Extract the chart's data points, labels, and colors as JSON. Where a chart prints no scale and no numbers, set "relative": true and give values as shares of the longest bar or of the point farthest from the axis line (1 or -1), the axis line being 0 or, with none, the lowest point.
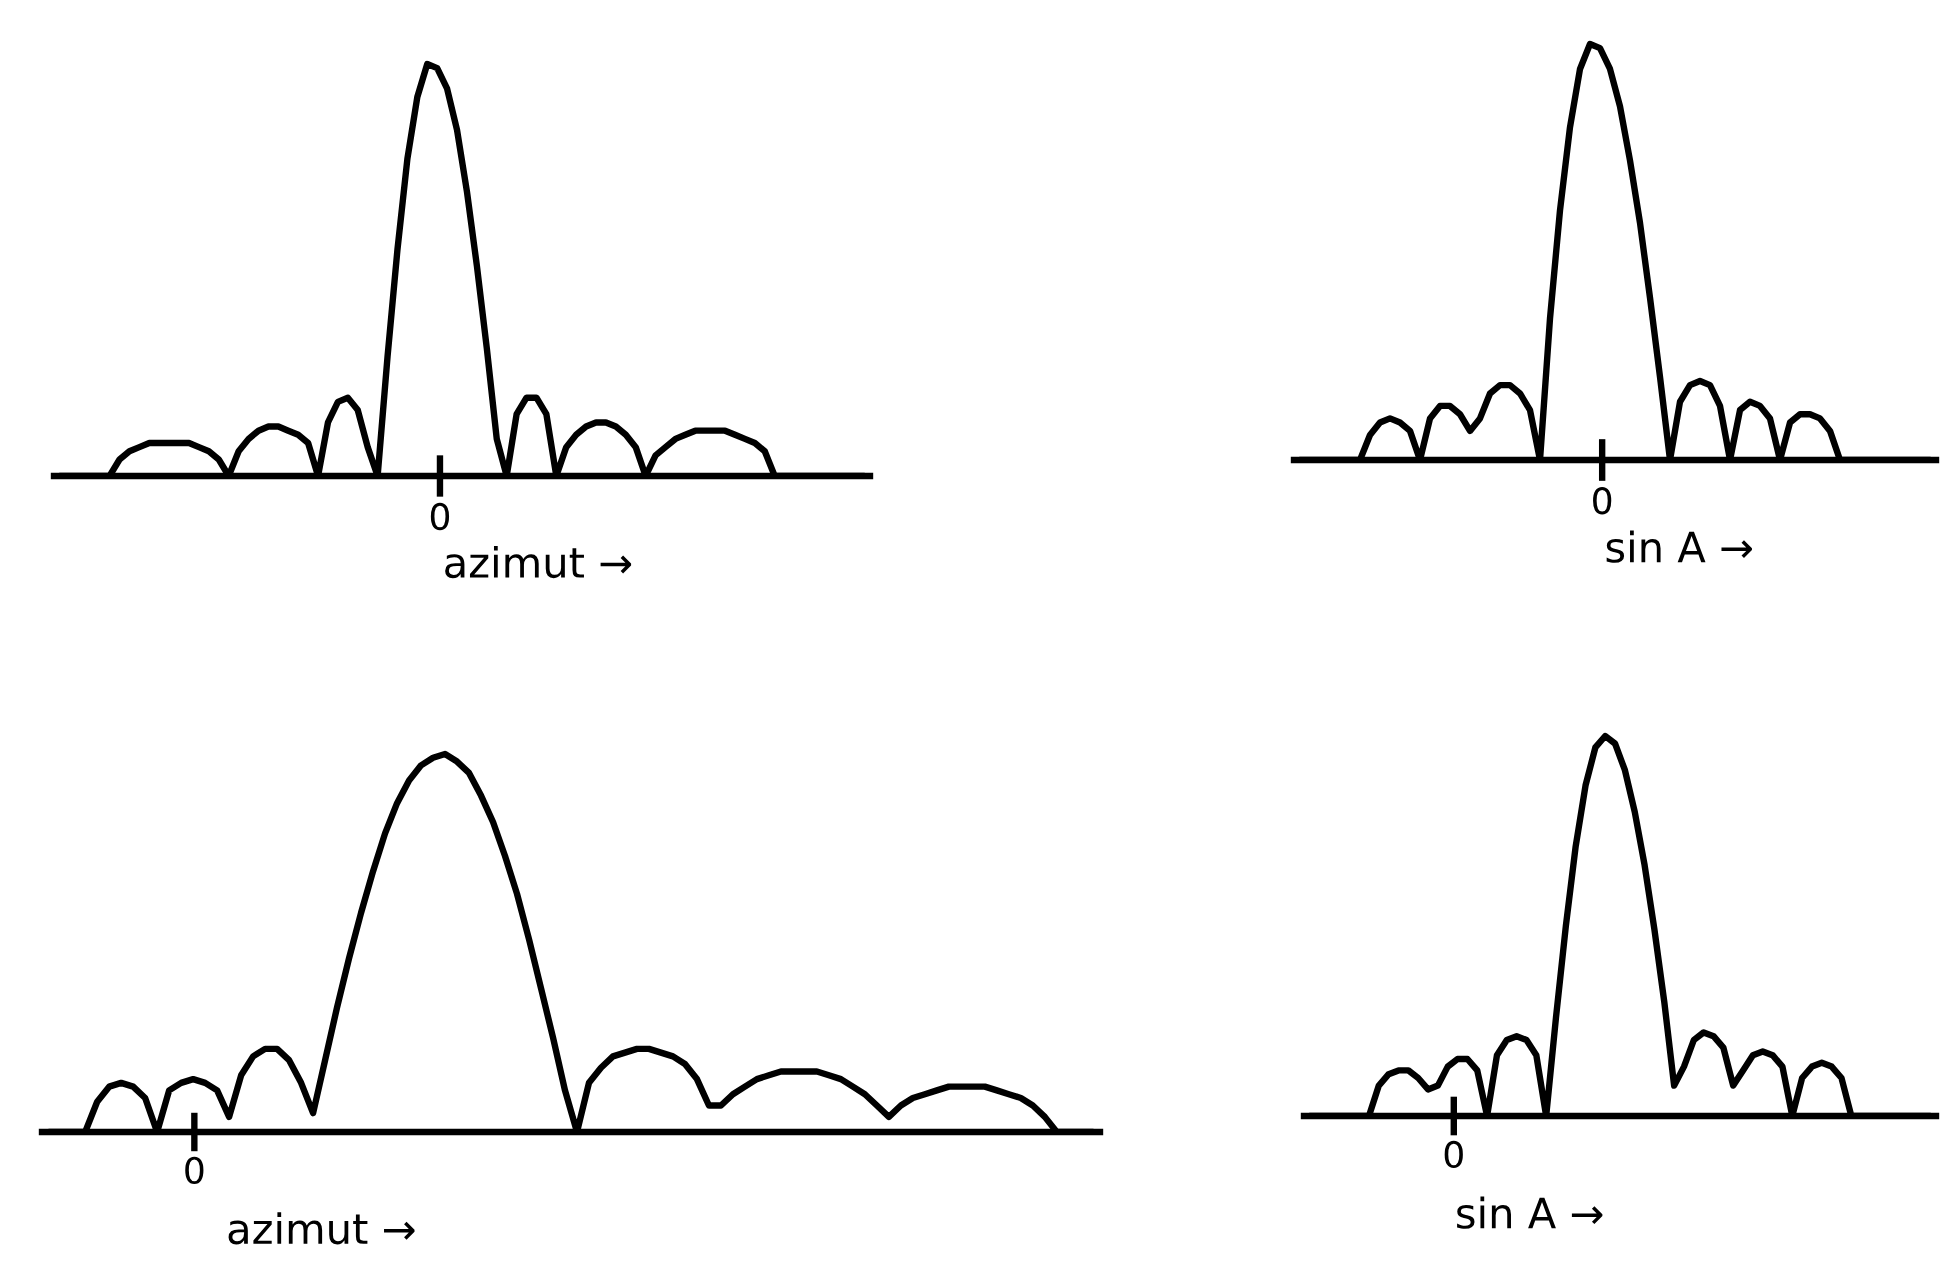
{
  "chart_data": [
    {
      "type": "line",
      "relative": true,
      "xlabel": "azimut →",
      "annotations": [
        "0"
      ],
      "categories": [
        null,
        null,
        null,
        null,
        null,
        null,
        null,
        null,
        null,
        null,
        null,
        null,
        null,
        null,
        null,
        null,
        null,
        null,
        null,
        null,
        null,
        null,
        null,
        null,
        null,
        null,
        null,
        null,
        null,
        null,
        null,
        null,
        null,
        null,
        null,
        null,
        null,
        null,
        null,
        null,
        null,
        null,
        null,
        null,
        null,
        null,
        null,
        null,
        null,
        null,
        null,
        null,
        null,
        null,
        null,
        null,
        null,
        null,
        null,
        null,
        null,
        null,
        null,
        null,
        null,
        null,
        null,
        null,
        null,
        null,
        null,
        null,
        null,
        null,
        null,
        null,
        null,
        null,
        null,
        null,
        null,
        null
      ],
      "series": [
        {
          "color": "#000000",
          "values": [
            0,
            0,
            0,
            0,
            0,
            0,
            0.04,
            0.06,
            0.07,
            0.08,
            0.08,
            0.08,
            0.08,
            0.08,
            0.07,
            0.06,
            0.04,
            0,
            0.06,
            0.09,
            0.11,
            0.12,
            0.12,
            0.11,
            0.1,
            0.08,
            0,
            0.13,
            0.18,
            0.19,
            0.16,
            0.07,
            0,
            0.29,
            0.55,
            0.77,
            0.92,
            1,
            0.99,
            0.94,
            0.84,
            0.69,
            0.51,
            0.31,
            0.09,
            0,
            0.15,
            0.19,
            0.19,
            0.15,
            0,
            0.07,
            0.1,
            0.12,
            0.13,
            0.13,
            0.12,
            0.1,
            0.07,
            0,
            0.05,
            0.07,
            0.09,
            0.1,
            0.11,
            0.11,
            0.11,
            0.11,
            0.1,
            0.09,
            0.08,
            0.06,
            0,
            0,
            0,
            0,
            0,
            0,
            0,
            0,
            0,
            0
          ]
        }
      ]
    },
    {
      "type": "line",
      "relative": true,
      "xlabel": "sin A →",
      "annotations": [
        "0"
      ],
      "categories": [
        null,
        null,
        null,
        null,
        null,
        null,
        null,
        null,
        null,
        null,
        null,
        null,
        null,
        null,
        null,
        null,
        null,
        null,
        null,
        null,
        null,
        null,
        null,
        null,
        null,
        null,
        null,
        null,
        null,
        null,
        null,
        null,
        null,
        null,
        null,
        null,
        null,
        null,
        null,
        null,
        null,
        null,
        null,
        null,
        null,
        null,
        null,
        null,
        null,
        null,
        null,
        null,
        null,
        null,
        null,
        null,
        null,
        null,
        null,
        null,
        null,
        null,
        null,
        null
      ],
      "series": [
        {
          "color": "#000000",
          "values": [
            0,
            0,
            0,
            0,
            0,
            0,
            0,
            0.06,
            0.09,
            0.1,
            0.09,
            0.07,
            0,
            0.1,
            0.13,
            0.13,
            0.11,
            0.07,
            0.1,
            0.16,
            0.18,
            0.18,
            0.16,
            0.12,
            0,
            0.34,
            0.6,
            0.8,
            0.94,
            1,
            0.99,
            0.94,
            0.85,
            0.72,
            0.57,
            0.39,
            0.2,
            0,
            0.14,
            0.18,
            0.19,
            0.18,
            0.13,
            0,
            0.12,
            0.14,
            0.13,
            0.1,
            0,
            0.09,
            0.11,
            0.11,
            0.1,
            0.07,
            0,
            0,
            0,
            0,
            0,
            0,
            0,
            0,
            0,
            0
          ]
        }
      ]
    },
    {
      "type": "line",
      "relative": true,
      "xlabel": "azimut →",
      "annotations": [
        "0"
      ],
      "categories": [
        null,
        null,
        null,
        null,
        null,
        null,
        null,
        null,
        null,
        null,
        null,
        null,
        null,
        null,
        null,
        null,
        null,
        null,
        null,
        null,
        null,
        null,
        null,
        null,
        null,
        null,
        null,
        null,
        null,
        null,
        null,
        null,
        null,
        null,
        null,
        null,
        null,
        null,
        null,
        null,
        null,
        null,
        null,
        null,
        null,
        null,
        null,
        null,
        null,
        null,
        null,
        null,
        null,
        null,
        null,
        null,
        null,
        null,
        null,
        null,
        null,
        null,
        null,
        null,
        null,
        null,
        null,
        null,
        null,
        null,
        null,
        null,
        null,
        null,
        null,
        null,
        null,
        null,
        null,
        null,
        null,
        null,
        null,
        null,
        null,
        null,
        null,
        null
      ],
      "series": [
        {
          "color": "#000000",
          "values": [
            0,
            0,
            0,
            0,
            0.08,
            0.12,
            0.13,
            0.12,
            0.09,
            0,
            0.11,
            0.13,
            0.14,
            0.13,
            0.11,
            0.04,
            0.15,
            0.2,
            0.22,
            0.22,
            0.19,
            0.13,
            0.05,
            0.19,
            0.33,
            0.46,
            0.58,
            0.69,
            0.79,
            0.87,
            0.93,
            0.97,
            0.99,
            1,
            0.98,
            0.95,
            0.89,
            0.82,
            0.73,
            0.63,
            0.51,
            0.38,
            0.25,
            0.11,
            0,
            0.13,
            0.17,
            0.2,
            0.21,
            0.22,
            0.22,
            0.21,
            0.2,
            0.18,
            0.14,
            0.07,
            0.07,
            0.1,
            0.12,
            0.14,
            0.15,
            0.16,
            0.16,
            0.16,
            0.16,
            0.15,
            0.14,
            0.12,
            0.1,
            0.07,
            0.04,
            0.07,
            0.09,
            0.1,
            0.11,
            0.12,
            0.12,
            0.12,
            0.12,
            0.11,
            0.1,
            0.09,
            0.07,
            0.04,
            0,
            0,
            0,
            0
          ]
        }
      ]
    },
    {
      "type": "line",
      "relative": true,
      "xlabel": "sin A →",
      "annotations": [
        "0"
      ],
      "categories": [
        null,
        null,
        null,
        null,
        null,
        null,
        null,
        null,
        null,
        null,
        null,
        null,
        null,
        null,
        null,
        null,
        null,
        null,
        null,
        null,
        null,
        null,
        null,
        null,
        null,
        null,
        null,
        null,
        null,
        null,
        null,
        null,
        null,
        null,
        null,
        null,
        null,
        null,
        null,
        null,
        null,
        null,
        null,
        null,
        null,
        null,
        null,
        null,
        null,
        null,
        null,
        null,
        null,
        null,
        null,
        null,
        null,
        null,
        null,
        null,
        null,
        null,
        null,
        null
      ],
      "series": [
        {
          "color": "#000000",
          "values": [
            0,
            0,
            0,
            0,
            0,
            0,
            0,
            0.08,
            0.11,
            0.12,
            0.12,
            0.1,
            0.07,
            0.08,
            0.13,
            0.15,
            0.15,
            0.12,
            0,
            0.16,
            0.2,
            0.21,
            0.2,
            0.16,
            0,
            0.26,
            0.5,
            0.71,
            0.87,
            0.97,
            1,
            0.98,
            0.91,
            0.8,
            0.66,
            0.49,
            0.3,
            0.08,
            0.13,
            0.2,
            0.22,
            0.21,
            0.18,
            0.08,
            0.12,
            0.16,
            0.17,
            0.16,
            0.13,
            0,
            0.1,
            0.13,
            0.14,
            0.13,
            0.1,
            0,
            0,
            0,
            0,
            0,
            0,
            0,
            0,
            0
          ]
        }
      ]
    }
  ]
}
